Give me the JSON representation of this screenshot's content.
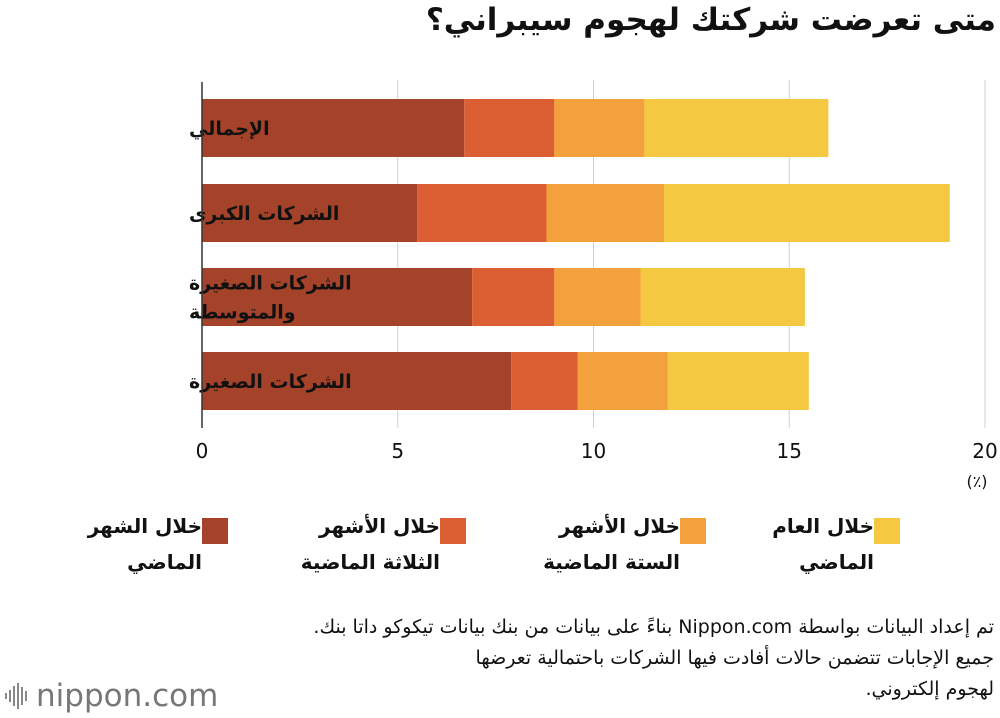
{
  "title": "متى تعرضت شركتك لهجوم سيبراني؟",
  "chart_data": {
    "type": "bar",
    "orientation": "horizontal",
    "stacked": true,
    "categories": [
      "الإجمالي",
      "الشركات الكبرى",
      "الشركات الصغيرة والمتوسطة",
      "الشركات الصغيرة"
    ],
    "series": [
      {
        "name": "خلال الشهر الماضي",
        "color": "#A5432A",
        "values": [
          6.7,
          5.5,
          6.9,
          7.9
        ]
      },
      {
        "name": "خلال الأشهر الثلاثة الماضية",
        "color": "#DC5F33",
        "values": [
          2.3,
          3.3,
          2.1,
          1.7
        ]
      },
      {
        "name": "خلال الأشهر الستة الماضية",
        "color": "#F2A13C",
        "values": [
          2.3,
          3.0,
          2.2,
          2.3
        ]
      },
      {
        "name": "خلال العام الماضي",
        "color": "#F5C842",
        "values": [
          4.7,
          7.3,
          4.2,
          3.6
        ]
      }
    ],
    "xlim": [
      0,
      20
    ],
    "xticks": [
      0,
      5,
      10,
      15,
      20
    ],
    "unit": "(٪)",
    "grid": true,
    "legend_position": "bottom"
  },
  "legend": [
    {
      "label": "خلال الشهر الماضي"
    },
    {
      "label": "خلال الأشهر الثلاثة الماضية"
    },
    {
      "label": "خلال الأشهر الستة الماضية"
    },
    {
      "label": "خلال العام الماضي"
    }
  ],
  "footnote": {
    "line1": "تم إعداد البيانات بواسطة Nippon.com بناءً على بيانات من بنك بيانات تيكوكو داتا بنك.",
    "line2": "جميع الإجابات تتضمن حالات أفادت فيها الشركات باحتمالية تعرضها",
    "line3": "لهجوم إلكتروني."
  },
  "logo": {
    "text": "nippon.com"
  }
}
